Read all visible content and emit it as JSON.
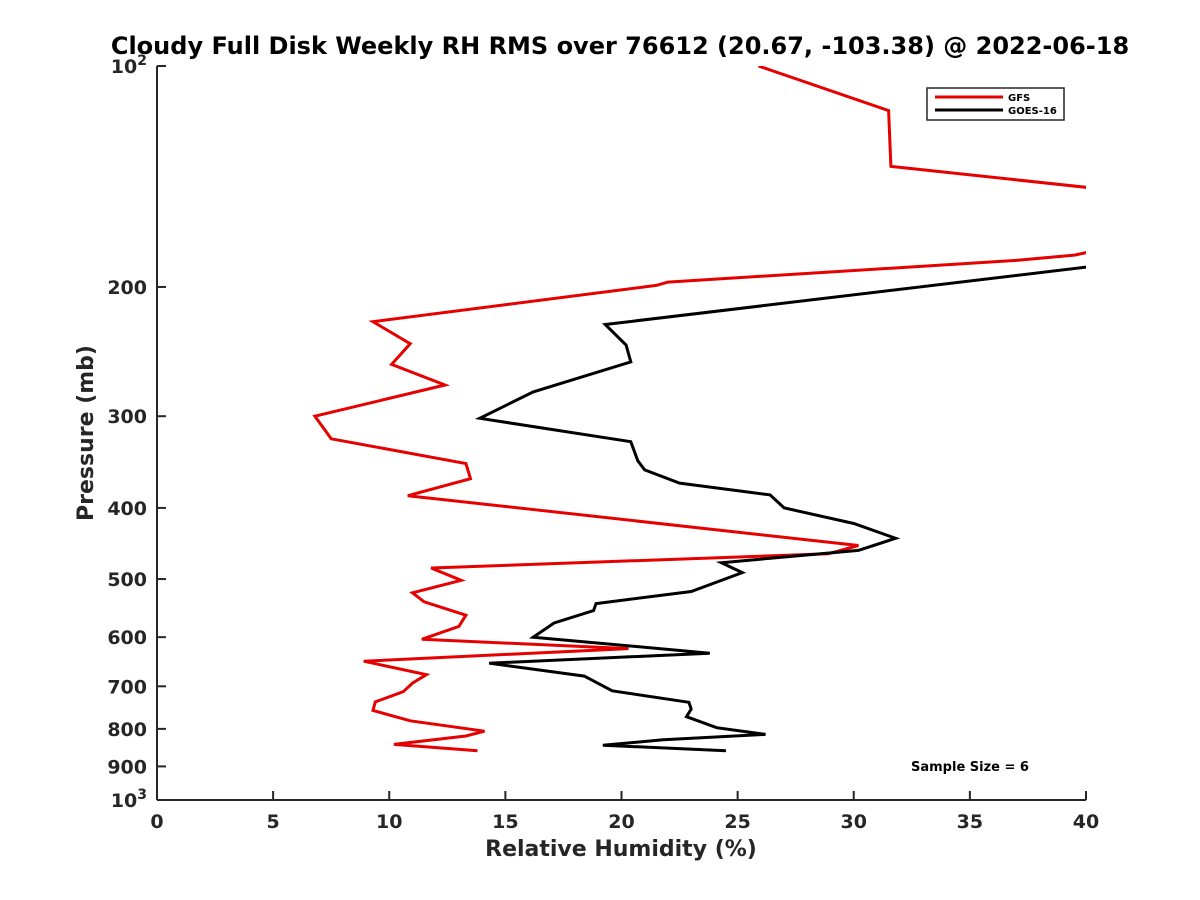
{
  "chart_data": {
    "type": "line",
    "title": "Cloudy Full Disk Weekly RH RMS over 76612 (20.67, -103.38) @ 2022-06-18",
    "xlabel": "Relative Humidity (%)",
    "ylabel": "Pressure (mb)",
    "xlim": [
      0,
      40
    ],
    "ylim": [
      100,
      1000
    ],
    "yscale": "log",
    "y_reversed": true,
    "grid": false,
    "legend_position": "top-right",
    "x_ticks": [
      {
        "value": 0,
        "label": "0"
      },
      {
        "value": 5,
        "label": "5"
      },
      {
        "value": 10,
        "label": "10"
      },
      {
        "value": 15,
        "label": "15"
      },
      {
        "value": 20,
        "label": "20"
      },
      {
        "value": 25,
        "label": "25"
      },
      {
        "value": 30,
        "label": "30"
      },
      {
        "value": 35,
        "label": "35"
      },
      {
        "value": 40,
        "label": "40"
      }
    ],
    "y_ticks": [
      {
        "value": 100,
        "base": "10",
        "exp": "2"
      },
      {
        "value": 200,
        "label": "200"
      },
      {
        "value": 300,
        "label": "300"
      },
      {
        "value": 400,
        "label": "400"
      },
      {
        "value": 500,
        "label": "500"
      },
      {
        "value": 600,
        "label": "600"
      },
      {
        "value": 700,
        "label": "700"
      },
      {
        "value": 800,
        "label": "800"
      },
      {
        "value": 900,
        "label": "900"
      },
      {
        "value": 1000,
        "base": "10",
        "exp": "3"
      }
    ],
    "series": [
      {
        "name": "GFS",
        "color": "#e60000",
        "points": [
          [
            25.9,
            100
          ],
          [
            31.5,
            115
          ],
          [
            31.6,
            137
          ],
          [
            40.6,
            147
          ],
          [
            null,
            null
          ],
          [
            40.6,
            178
          ],
          [
            39.5,
            181
          ],
          [
            37.0,
            184
          ],
          [
            22.0,
            197
          ],
          [
            21.5,
            199
          ],
          [
            9.3,
            223
          ],
          [
            10.9,
            239
          ],
          [
            10.1,
            255
          ],
          [
            12.4,
            272
          ],
          [
            6.8,
            300
          ],
          [
            7.5,
            322
          ],
          [
            13.3,
            348
          ],
          [
            13.5,
            365
          ],
          [
            10.8,
            385
          ],
          [
            30.2,
            450
          ],
          [
            28.9,
            462
          ],
          [
            11.8,
            483
          ],
          [
            13.1,
            502
          ],
          [
            11.0,
            522
          ],
          [
            11.5,
            537
          ],
          [
            13.3,
            560
          ],
          [
            13.0,
            580
          ],
          [
            11.4,
            604
          ],
          [
            20.3,
            622
          ],
          [
            8.9,
            647
          ],
          [
            11.6,
            675
          ],
          [
            11.0,
            693
          ],
          [
            10.6,
            712
          ],
          [
            9.4,
            735
          ],
          [
            9.3,
            755
          ],
          [
            10.9,
            780
          ],
          [
            14.1,
            806
          ],
          [
            13.3,
            818
          ],
          [
            10.2,
            840
          ],
          [
            13.8,
            857
          ]
        ]
      },
      {
        "name": "GOES-16",
        "color": "#000000",
        "points": [
          [
            40.6,
            187
          ],
          [
            19.3,
            225
          ],
          [
            20.2,
            240
          ],
          [
            20.4,
            253
          ],
          [
            16.2,
            278
          ],
          [
            13.9,
            302
          ],
          [
            20.4,
            325
          ],
          [
            20.7,
            345
          ],
          [
            21.0,
            355
          ],
          [
            22.5,
            370
          ],
          [
            26.4,
            384
          ],
          [
            27.0,
            400
          ],
          [
            30.0,
            420
          ],
          [
            31.8,
            440
          ],
          [
            30.2,
            457
          ],
          [
            24.3,
            475
          ],
          [
            25.2,
            490
          ],
          [
            23.0,
            520
          ],
          [
            18.9,
            540
          ],
          [
            18.8,
            552
          ],
          [
            17.1,
            574
          ],
          [
            16.2,
            600
          ],
          [
            23.8,
            631
          ],
          [
            14.3,
            651
          ],
          [
            18.4,
            678
          ],
          [
            19.6,
            710
          ],
          [
            22.9,
            736
          ],
          [
            23.0,
            752
          ],
          [
            22.8,
            770
          ],
          [
            24.1,
            797
          ],
          [
            26.2,
            814
          ],
          [
            21.8,
            828
          ],
          [
            19.2,
            842
          ],
          [
            24.5,
            857
          ]
        ]
      }
    ],
    "annotation": "Sample Size = 6"
  }
}
